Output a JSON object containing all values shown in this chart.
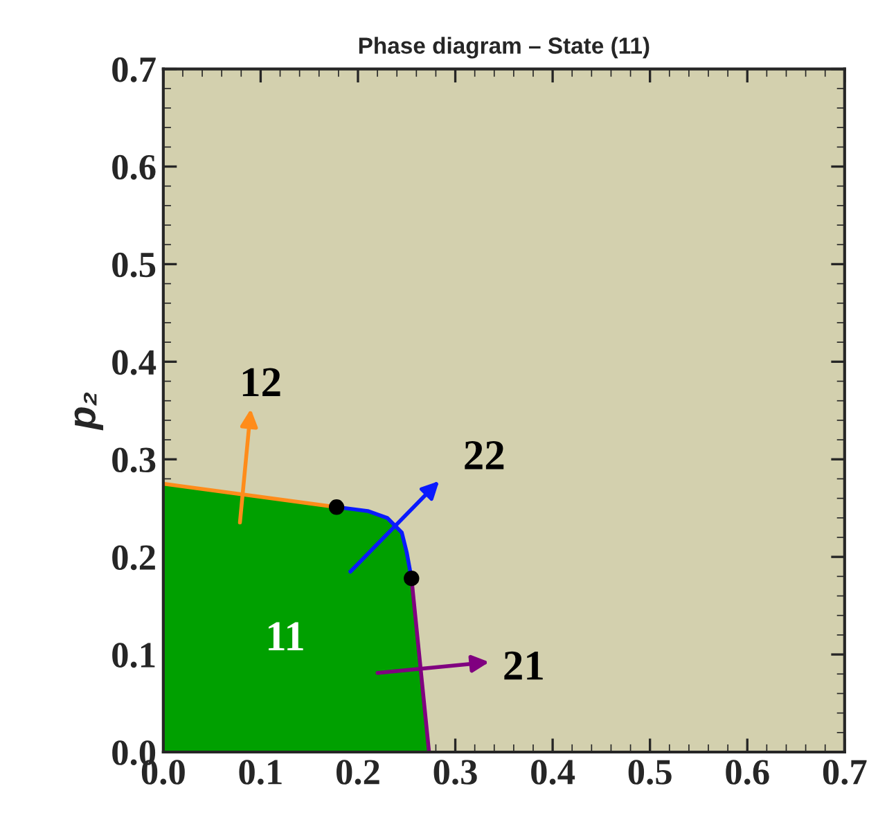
{
  "chart_data": {
    "type": "area",
    "title": "Phase diagram – State (11)",
    "ylabel": "p₂",
    "xlim": [
      0,
      0.7
    ],
    "ylim": [
      0,
      0.7
    ],
    "xticks": [
      {
        "value": 0,
        "label": "0.0"
      },
      0.1,
      0.2,
      0.3,
      0.4,
      0.5,
      0.6,
      0.7
    ],
    "yticks": [
      {
        "value": 0,
        "label": "0.0"
      },
      0.1,
      0.2,
      0.3,
      0.4,
      0.5,
      0.6,
      0.7
    ],
    "grid": false,
    "legend": false,
    "series": [
      {
        "color": "#00a000",
        "x": [
          0,
          0.178,
          0.21,
          0.23,
          0.245,
          0.25,
          0.255,
          0.273
        ],
        "values": [
          0.275,
          0.251,
          0.247,
          0.24,
          0.225,
          0.205,
          0.178,
          0
        ]
      },
      {
        "type": "line",
        "color": "#ff8c1a",
        "x": [
          0,
          0.178
        ],
        "values": [
          0.275,
          0.251
        ]
      },
      {
        "type": "line",
        "color": "#0a1aff",
        "x": [
          0.178,
          0.21,
          0.23,
          0.245,
          0.25,
          0.255
        ],
        "values": [
          0.251,
          0.247,
          0.24,
          0.225,
          0.205,
          0.178
        ]
      },
      {
        "type": "line",
        "color": "#800080",
        "x": [
          0.255,
          0.273
        ],
        "values": [
          0.178,
          0
        ]
      },
      {
        "type": "scatter",
        "color": "#000000",
        "marker": "circle",
        "x": [
          0.178,
          0.255
        ],
        "values": [
          0.251,
          0.178
        ]
      }
    ],
    "annotations": [
      "12",
      "22",
      "21",
      "11"
    ]
  }
}
